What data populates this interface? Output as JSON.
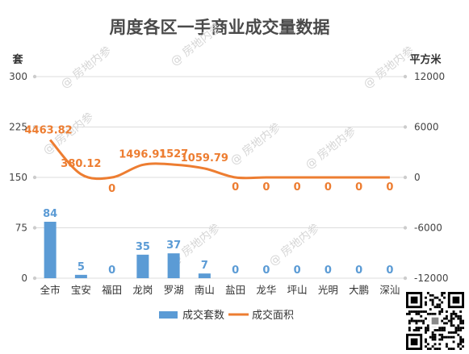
{
  "chart_data": {
    "type": "bar+line",
    "title": "周度各区一手商业成交量数据",
    "categories": [
      "全市",
      "宝安",
      "福田",
      "龙岗",
      "罗湖",
      "南山",
      "盐田",
      "龙华",
      "坪山",
      "光明",
      "大鹏",
      "深汕"
    ],
    "series": [
      {
        "name": "成交套数",
        "type": "bar",
        "axis": "left",
        "color": "#5b9bd5",
        "values": [
          84,
          5,
          0,
          35,
          37,
          7,
          0,
          0,
          0,
          0,
          0,
          0
        ],
        "labels": [
          "84",
          "5",
          "0",
          "35",
          "37",
          "7",
          "0",
          "0",
          "0",
          "0",
          "0",
          "0"
        ]
      },
      {
        "name": "成交面积",
        "type": "line",
        "axis": "right",
        "color": "#ed7d31",
        "values": [
          4463.82,
          380.12,
          0,
          1496.91,
          1527,
          1059.79,
          0,
          0,
          0,
          0,
          0,
          0
        ],
        "labels": [
          "4463.82",
          "380.12",
          "0",
          "1496.91",
          "1527",
          "1059.79",
          "0",
          "0",
          "0",
          "0",
          "0",
          "0"
        ]
      }
    ],
    "y_left": {
      "label": "套",
      "min": 0,
      "max": 300,
      "ticks": [
        0,
        75,
        150,
        225,
        300
      ]
    },
    "y_right": {
      "label": "平方米",
      "min": -12000,
      "max": 12000,
      "ticks": [
        -12000,
        -6000,
        0,
        6000,
        12000
      ]
    },
    "grid": true,
    "legend_position": "bottom"
  },
  "watermark": "@ 房地内参",
  "qr_code_icon": "qr-code-icon"
}
